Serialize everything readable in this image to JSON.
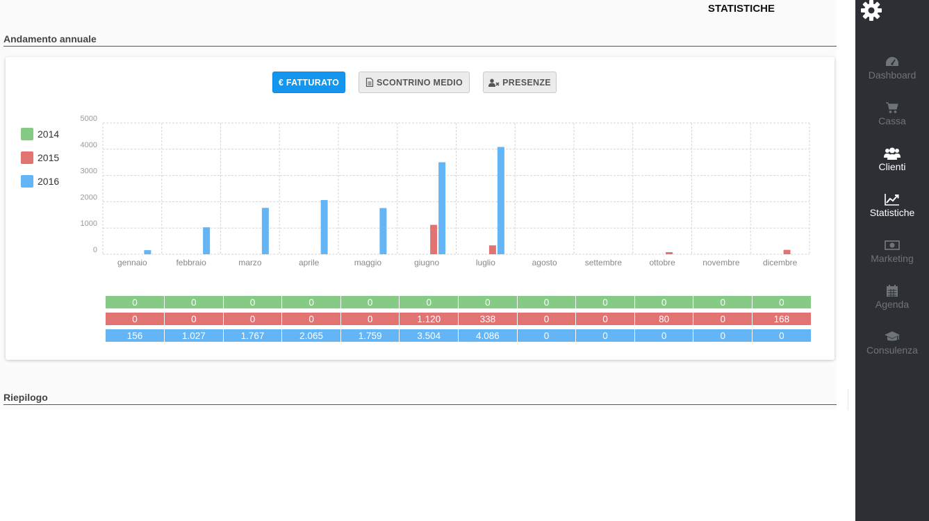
{
  "header": {
    "title": "STATISTICHE"
  },
  "sections": {
    "annual": "Andamento annuale",
    "summary": "Riepilogo"
  },
  "toolbar": {
    "fatturato": "€ FATTURATO",
    "scontrino": "SCONTRINO MEDIO",
    "presenze": "PRESENZE"
  },
  "colors": {
    "2014": "#85ca85",
    "2015": "#e27373",
    "2016": "#63b5f5",
    "accent": "#1296f0",
    "sidebar": "#2c2f33"
  },
  "chart_data": {
    "type": "bar",
    "categories": [
      "gennaio",
      "febbraio",
      "marzo",
      "aprile",
      "maggio",
      "giugno",
      "luglio",
      "agosto",
      "settembre",
      "ottobre",
      "novembre",
      "dicembre"
    ],
    "series": [
      {
        "name": "2014",
        "values": [
          0,
          0,
          0,
          0,
          0,
          0,
          0,
          0,
          0,
          0,
          0,
          0
        ],
        "labels": [
          "0",
          "0",
          "0",
          "0",
          "0",
          "0",
          "0",
          "0",
          "0",
          "0",
          "0",
          "0"
        ]
      },
      {
        "name": "2015",
        "values": [
          0,
          0,
          0,
          0,
          0,
          1120,
          338,
          0,
          0,
          80,
          0,
          168
        ],
        "labels": [
          "0",
          "0",
          "0",
          "0",
          "0",
          "1.120",
          "338",
          "0",
          "0",
          "80",
          "0",
          "168"
        ]
      },
      {
        "name": "2016",
        "values": [
          156,
          1027,
          1767,
          2065,
          1759,
          3504,
          4086,
          0,
          0,
          0,
          0,
          0
        ],
        "labels": [
          "156",
          "1.027",
          "1.767",
          "2.065",
          "1.759",
          "3.504",
          "4.086",
          "0",
          "0",
          "0",
          "0",
          "0"
        ]
      }
    ],
    "yticks": [
      "0",
      "1000",
      "2000",
      "3000",
      "4000",
      "5000"
    ],
    "ylim": [
      0,
      5000
    ],
    "grid": true,
    "legend": "left"
  },
  "sidebar": {
    "items": [
      {
        "label": "Dashboard",
        "icon": "dashboard-icon",
        "active": false
      },
      {
        "label": "Cassa",
        "icon": "cart-icon",
        "active": false
      },
      {
        "label": "Clienti",
        "icon": "users-icon",
        "active": true
      },
      {
        "label": "Statistiche",
        "icon": "line-chart-icon",
        "active": true
      },
      {
        "label": "Marketing",
        "icon": "money-icon",
        "active": false
      },
      {
        "label": "Agenda",
        "icon": "calendar-icon",
        "active": false
      },
      {
        "label": "Consulenza",
        "icon": "graduation-cap-icon",
        "active": false
      }
    ]
  }
}
